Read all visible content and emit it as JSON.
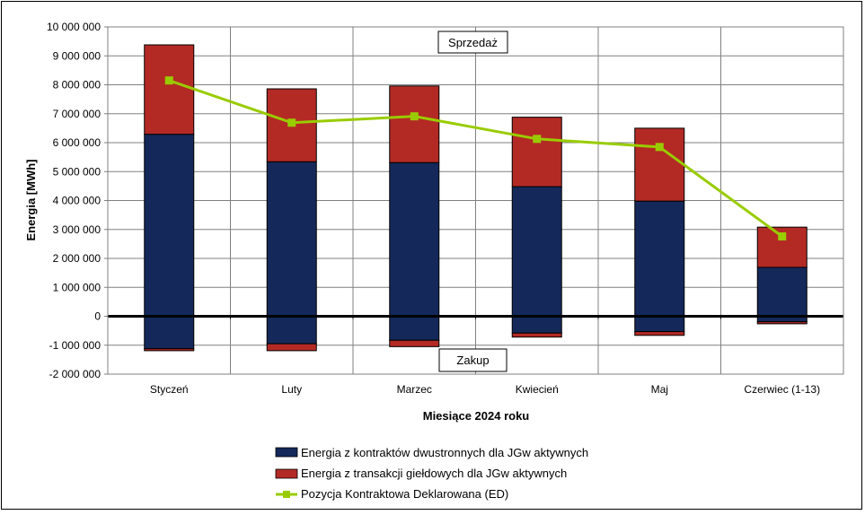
{
  "chart_data": {
    "type": "bar",
    "stacked": true,
    "title": "",
    "xlabel": "Miesiące 2024 roku",
    "ylabel": "Energia [MWh]",
    "ylim": [
      -2000000,
      10000000
    ],
    "y_ticks": [
      -2000000,
      -1000000,
      0,
      1000000,
      2000000,
      3000000,
      4000000,
      5000000,
      6000000,
      7000000,
      8000000,
      9000000,
      10000000
    ],
    "y_tick_labels": [
      "-2 000 000",
      "-1 000 000",
      "0",
      "1 000 000",
      "2 000 000",
      "3 000 000",
      "4 000 000",
      "5 000 000",
      "6 000 000",
      "7 000 000",
      "8 000 000",
      "9 000 000",
      "10 000 000"
    ],
    "categories": [
      "Styczeń",
      "Luty",
      "Marzec",
      "Kwiecień",
      "Maj",
      "Czerwiec (1-13)"
    ],
    "grid": true,
    "legend_position": "bottom",
    "annotations": {
      "top": "Sprzedaż",
      "bottom": "Zakup"
    },
    "series": [
      {
        "name": "Energia z kontraktów dwustronnych dla JGw aktywnych",
        "type": "bar",
        "color": "#14295a",
        "positive": [
          6290000,
          5340000,
          5310000,
          4480000,
          3980000,
          1690000
        ],
        "negative": [
          -1120000,
          -950000,
          -830000,
          -580000,
          -530000,
          -190000
        ]
      },
      {
        "name": "Energia z transakcji giełdowych dla JGw aktywnych",
        "type": "bar",
        "color": "#b32a25",
        "positive": [
          3090000,
          2520000,
          2650000,
          2400000,
          2520000,
          1390000
        ],
        "negative": [
          -70000,
          -240000,
          -220000,
          -140000,
          -130000,
          -70000
        ]
      },
      {
        "name": "Pozycja Kontraktowa Deklarowana (ED)",
        "type": "line",
        "color": "#99cc00",
        "values": [
          8150000,
          6690000,
          6910000,
          6130000,
          5850000,
          2760000
        ]
      }
    ]
  }
}
